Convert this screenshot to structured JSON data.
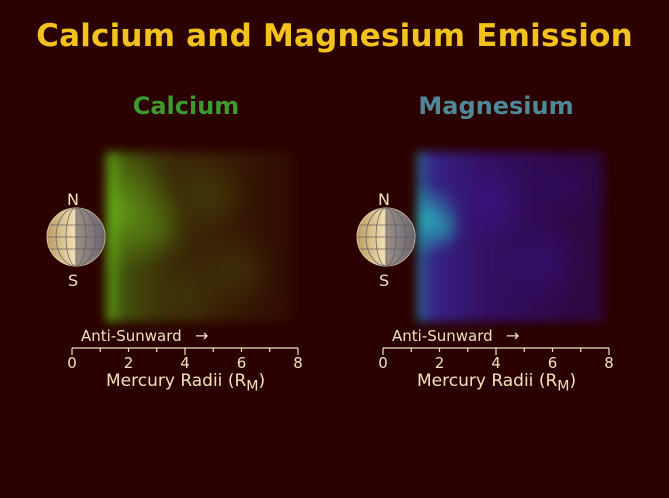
{
  "title": "Calcium and Magnesium Emission",
  "colors": {
    "background": "#2b0000",
    "title": "#f2c21e",
    "calcium": "#3e9a2f",
    "magnesium": "#4f8896",
    "label": "#f0e2b9"
  },
  "panels": [
    {
      "name": "Calcium",
      "north_label": "N",
      "south_label": "S",
      "direction_label": "Anti-Sunward",
      "direction_arrow": "→",
      "axis_label": "Mercury Radii (R",
      "axis_label_subscript": "M",
      "axis_label_suffix": ")",
      "ticks": [
        "0",
        "2",
        "4",
        "6",
        "8"
      ]
    },
    {
      "name": "Magnesium",
      "north_label": "N",
      "south_label": "S",
      "direction_label": "Anti-Sunward",
      "direction_arrow": "→",
      "axis_label": "Mercury Radii (R",
      "axis_label_subscript": "M",
      "axis_label_suffix": ")",
      "ticks": [
        "0",
        "2",
        "4",
        "6",
        "8"
      ]
    }
  ]
}
